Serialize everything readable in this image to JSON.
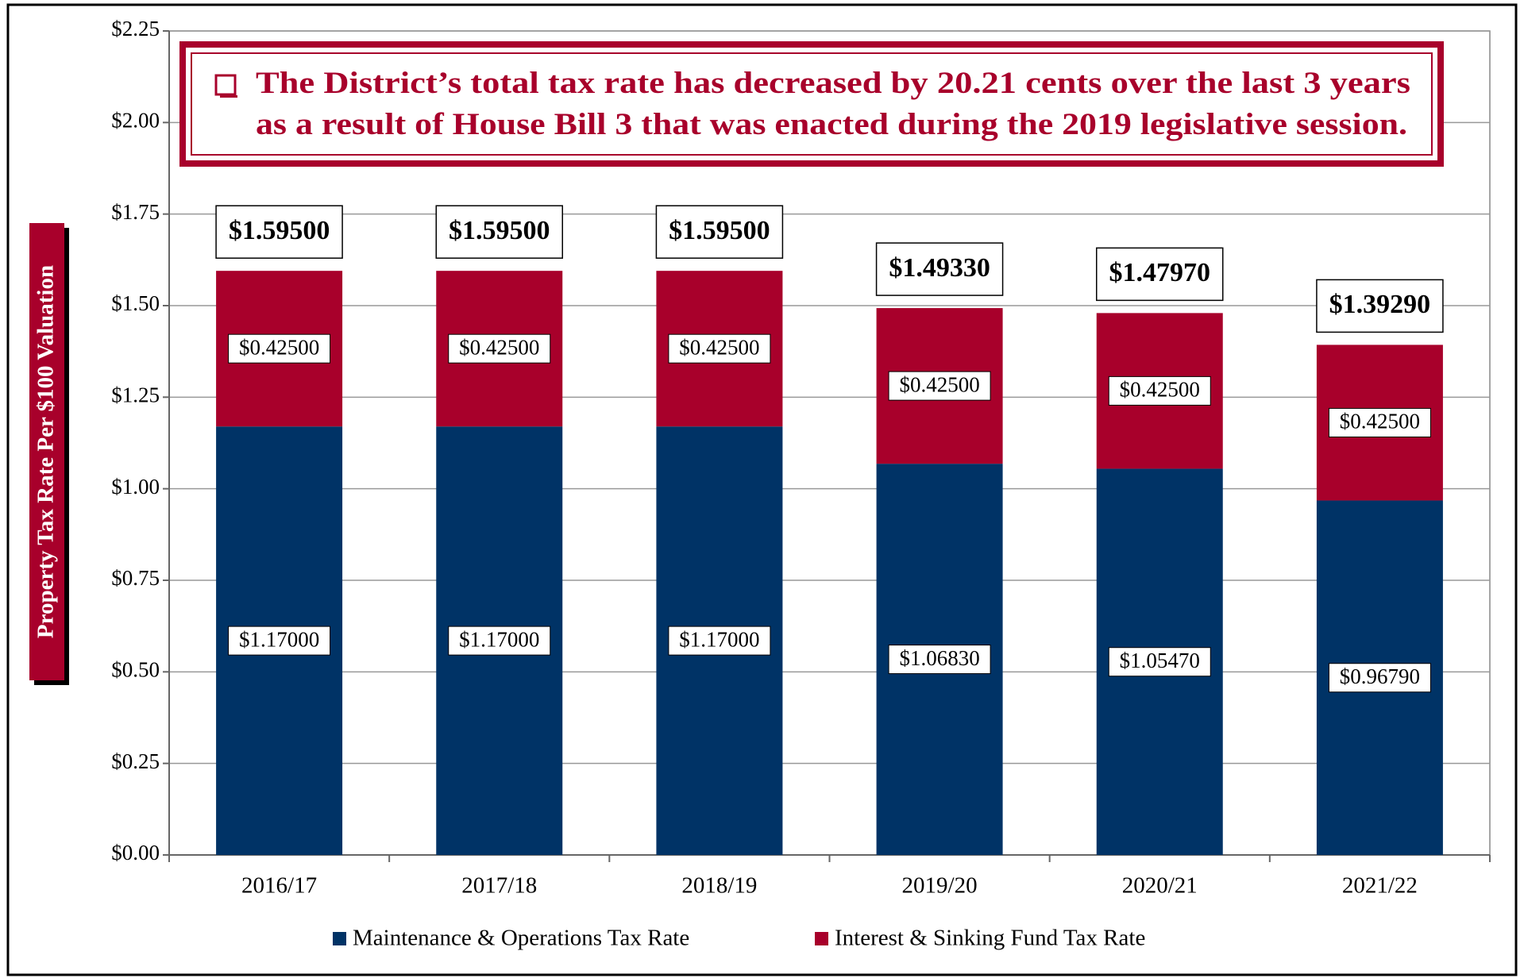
{
  "chart_data": {
    "type": "stacked_bar",
    "annotation": [
      "The District’s total tax rate has decreased by 20.21 cents over the last 3 years",
      "as a result of House Bill 3 that was enacted during the 2019 legislative session."
    ],
    "y_label": "Property Tax Rate Per $100 Valuation",
    "categories": [
      "2016/17",
      "2017/18",
      "2018/19",
      "2019/20",
      "2020/21",
      "2021/22"
    ],
    "series": [
      {
        "name": "Maintenance & Operations Tax Rate",
        "color": "#003366",
        "values": [
          1.17,
          1.17,
          1.17,
          1.0683,
          1.0547,
          0.9679
        ],
        "value_labels": [
          "$1.17000",
          "$1.17000",
          "$1.17000",
          "$1.06830",
          "$1.05470",
          "$0.96790"
        ]
      },
      {
        "name": "Interest & Sinking Fund Tax Rate",
        "color": "#a8002b",
        "values": [
          0.425,
          0.425,
          0.425,
          0.425,
          0.425,
          0.425
        ],
        "value_labels": [
          "$0.42500",
          "$0.42500",
          "$0.42500",
          "$0.42500",
          "$0.42500",
          "$0.42500"
        ]
      }
    ],
    "totals": [
      1.595,
      1.595,
      1.595,
      1.4933,
      1.4797,
      1.3929
    ],
    "total_labels": [
      "$1.59500",
      "$1.59500",
      "$1.59500",
      "$1.49330",
      "$1.47970",
      "$1.39290"
    ],
    "ylim": [
      0,
      2.25
    ],
    "yticks": [
      {
        "value": 0,
        "label": "$0.00"
      },
      {
        "value": 0.25,
        "label": "$0.25"
      },
      {
        "value": 0.5,
        "label": "$0.50"
      },
      {
        "value": 0.75,
        "label": "$0.75"
      },
      {
        "value": 1,
        "label": "$1.00"
      },
      {
        "value": 1.25,
        "label": "$1.25"
      },
      {
        "value": 1.5,
        "label": "$1.50"
      },
      {
        "value": 1.75,
        "label": "$1.75"
      },
      {
        "value": 2,
        "label": "$2.00"
      },
      {
        "value": 2.25,
        "label": "$2.25"
      }
    ],
    "grid": true,
    "legend": "bottom"
  }
}
